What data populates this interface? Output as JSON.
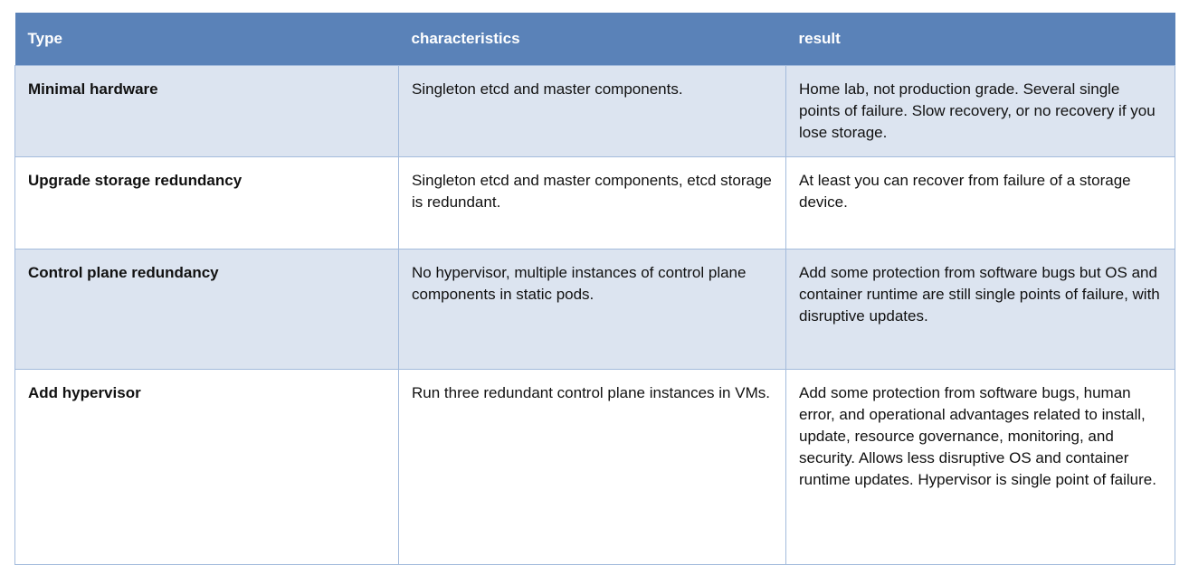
{
  "table": {
    "headers": [
      "Type",
      "characteristics",
      "result"
    ],
    "rows": [
      {
        "type": "Minimal hardware",
        "characteristics": "Singleton etcd and master components.",
        "result": "Home lab, not production grade. Several single points of failure. Slow recovery, or no recovery if you lose storage."
      },
      {
        "type": "Upgrade storage redundancy",
        "characteristics": "Singleton etcd and master components, etcd storage is redundant.",
        "result": "At least you can recover from failure of a storage device."
      },
      {
        "type": "Control plane redundancy",
        "characteristics": "No hypervisor, multiple instances of control plane components in static pods.",
        "result": "Add some protection from software bugs but OS and container runtime are still single points of failure, with disruptive updates."
      },
      {
        "type": "Add hypervisor",
        "characteristics": "Run three redundant control plane instances in VMs.",
        "result": "Add some protection from software bugs, human error, and operational advantages related to install, update, resource governance, monitoring, and security. Allows less disruptive OS and container runtime updates. Hypervisor is single point of failure."
      }
    ]
  },
  "colors": {
    "header_bg": "#5a82b8",
    "alt_row_bg": "#dce4f0",
    "border": "#a3bbdc"
  }
}
